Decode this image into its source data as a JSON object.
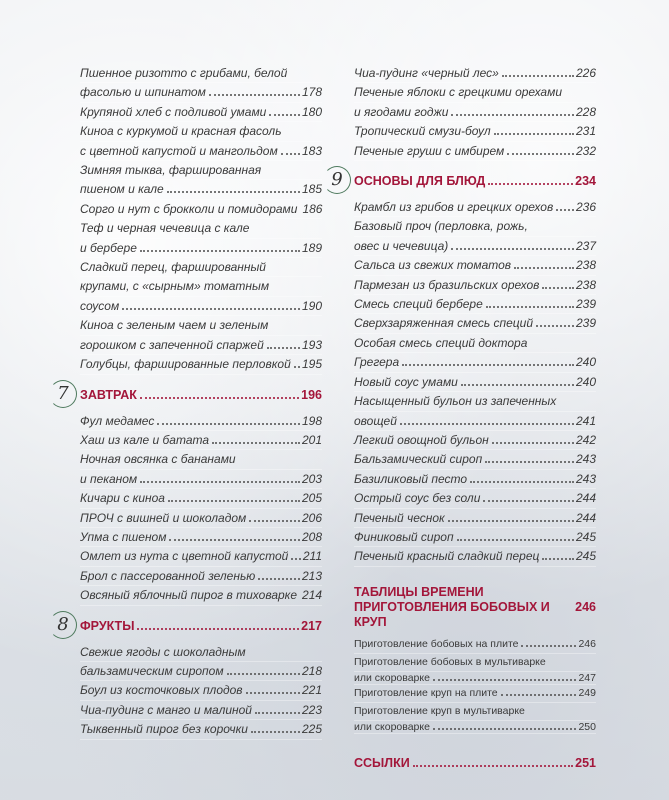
{
  "left": {
    "intro": [
      {
        "lines": [
          "Пшенное ризотто с грибами, белой",
          "фасолью и шпинатом"
        ],
        "page": "178"
      },
      {
        "lines": [
          "Крупяной хлеб с подливой умами"
        ],
        "page": "180"
      },
      {
        "lines": [
          "Киноа с куркумой и красная фасоль",
          "с цветной капустой и мангольдом"
        ],
        "page": "183"
      },
      {
        "lines": [
          "Зимняя тыква, фаршированная",
          "пшеном и кале"
        ],
        "page": "185"
      },
      {
        "lines": [
          "Сорго и нут с брокколи и помидорами"
        ],
        "page": "186"
      },
      {
        "lines": [
          "Теф и черная чечевица с кале",
          "и бербере"
        ],
        "page": "189"
      },
      {
        "lines": [
          "Сладкий перец, фаршированный",
          "крупами, с «сырным» томатным",
          "соусом"
        ],
        "page": "190"
      },
      {
        "lines": [
          "Киноа с зеленым чаем и зеленым",
          "горошком с запеченной спаржей"
        ],
        "page": "193"
      },
      {
        "lines": [
          "Голубцы, фаршированные перловкой"
        ],
        "page": "195"
      }
    ],
    "ch7": {
      "number": "7",
      "title": "ЗАВТРАК",
      "page": "196",
      "entries": [
        {
          "lines": [
            "Фул медамес"
          ],
          "page": "198"
        },
        {
          "lines": [
            "Хаш из кале и батата"
          ],
          "page": "201"
        },
        {
          "lines": [
            "Ночная овсянка с бананами",
            "и пеканом"
          ],
          "page": "203"
        },
        {
          "lines": [
            "Кичари с киноа"
          ],
          "page": "205"
        },
        {
          "lines": [
            "ПРОЧ с вишней и шоколадом"
          ],
          "page": "206"
        },
        {
          "lines": [
            "Упма с пшеном"
          ],
          "page": "208"
        },
        {
          "lines": [
            "Омлет из нута с цветной капустой"
          ],
          "page": "211"
        },
        {
          "lines": [
            "Брол с пассерованной зеленью"
          ],
          "page": "213"
        },
        {
          "lines": [
            "Овсяный яблочный пирог в тиховарке"
          ],
          "page": "214"
        }
      ]
    },
    "ch8": {
      "number": "8",
      "title": "ФРУКТЫ",
      "page": "217",
      "entries": [
        {
          "lines": [
            "Свежие ягоды с шоколадным",
            "бальзамическим сиропом"
          ],
          "page": "218"
        },
        {
          "lines": [
            "Боул из косточковых плодов"
          ],
          "page": "221"
        },
        {
          "lines": [
            "Чиа-пудинг с манго и малиной"
          ],
          "page": "223"
        },
        {
          "lines": [
            "Тыквенный пирог без корочки"
          ],
          "page": "225"
        }
      ]
    }
  },
  "right": {
    "intro": [
      {
        "lines": [
          "Чиа-пудинг «черный лес»"
        ],
        "page": "226"
      },
      {
        "lines": [
          "Печеные яблоки с грецкими орехами",
          "и ягодами годжи"
        ],
        "page": "228"
      },
      {
        "lines": [
          "Тропический смузи-боул"
        ],
        "page": "231"
      },
      {
        "lines": [
          "Печеные груши с имбирем"
        ],
        "page": "232"
      }
    ],
    "ch9": {
      "number": "9",
      "title": "ОСНОВЫ ДЛЯ БЛЮД",
      "page": "234",
      "entries": [
        {
          "lines": [
            "Крамбл из грибов и грецких орехов"
          ],
          "page": "236"
        },
        {
          "lines": [
            "Базовый проч (перловка, рожь,",
            "овес и чечевица)"
          ],
          "page": "237"
        },
        {
          "lines": [
            "Сальса из свежих томатов"
          ],
          "page": "238"
        },
        {
          "lines": [
            "Пармезан из бразильских орехов"
          ],
          "page": "238"
        },
        {
          "lines": [
            "Смесь специй бербере"
          ],
          "page": "239"
        },
        {
          "lines": [
            "Сверхзаряженная смесь специй"
          ],
          "page": "239"
        },
        {
          "lines": [
            "Особая смесь специй доктора",
            "Грегера"
          ],
          "page": "240"
        },
        {
          "lines": [
            "Новый соус умами"
          ],
          "page": "240"
        },
        {
          "lines": [
            "Насыщенный бульон из запеченных",
            "овощей"
          ],
          "page": "241"
        },
        {
          "lines": [
            "Легкий овощной бульон"
          ],
          "page": "242"
        },
        {
          "lines": [
            "Бальзамический сироп"
          ],
          "page": "243"
        },
        {
          "lines": [
            "Базиликовый песто"
          ],
          "page": "243"
        },
        {
          "lines": [
            "Острый соус без соли"
          ],
          "page": "244"
        },
        {
          "lines": [
            "Печеный чеснок"
          ],
          "page": "244"
        },
        {
          "lines": [
            "Финиковый сироп"
          ],
          "page": "245"
        },
        {
          "lines": [
            "Печеный красный сладкий перец"
          ],
          "page": "245"
        }
      ]
    },
    "tables": {
      "title_lines": [
        "ТАБЛИЦЫ ВРЕМЕНИ",
        "ПРИГОТОВЛЕНИЯ БОБОВЫХ И КРУП"
      ],
      "page": "246",
      "entries": [
        {
          "lines": [
            "Приготовление бобовых на плите"
          ],
          "page": "246"
        },
        {
          "lines": [
            "Приготовление бобовых в мультиварке",
            "или скороварке"
          ],
          "page": "247"
        },
        {
          "lines": [
            "Приготовление круп на плите"
          ],
          "page": "249"
        },
        {
          "lines": [
            "Приготовление круп в мультиварке",
            "или скороварке"
          ],
          "page": "250"
        }
      ]
    },
    "refs": {
      "title": "ССЫЛКИ",
      "page": "251"
    }
  },
  "colors": {
    "heading": "#a3163a",
    "circle": "#4e7a5e",
    "text": "#3a3a3a"
  }
}
